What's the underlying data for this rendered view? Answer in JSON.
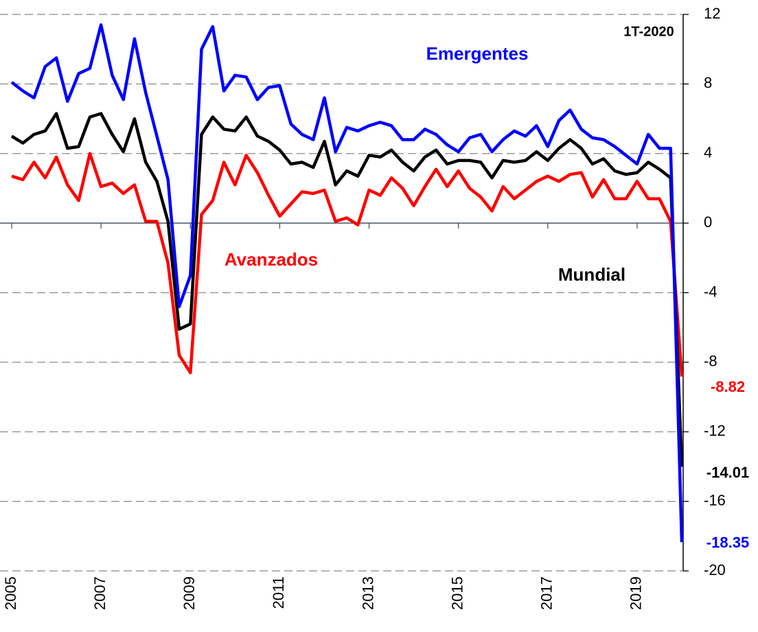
{
  "chart_data": {
    "type": "line",
    "annotations": [
      "1T-2020"
    ],
    "x": [
      2005,
      2005.25,
      2005.5,
      2005.75,
      2006,
      2006.25,
      2006.5,
      2006.75,
      2007,
      2007.25,
      2007.5,
      2007.75,
      2008,
      2008.25,
      2008.5,
      2008.75,
      2009,
      2009.25,
      2009.5,
      2009.75,
      2010,
      2010.25,
      2010.5,
      2010.75,
      2011,
      2011.25,
      2011.5,
      2011.75,
      2012,
      2012.25,
      2012.5,
      2012.75,
      2013,
      2013.25,
      2013.5,
      2013.75,
      2014,
      2014.25,
      2014.5,
      2014.75,
      2015,
      2015.25,
      2015.5,
      2015.75,
      2016,
      2016.25,
      2016.5,
      2016.75,
      2017,
      2017.25,
      2017.5,
      2017.75,
      2018,
      2018.25,
      2018.5,
      2018.75,
      2019,
      2019.25,
      2019.5,
      2019.75,
      2020
    ],
    "series": [
      {
        "name": "Avanzados",
        "color": "#ff0000",
        "values": [
          2.7,
          2.5,
          3.5,
          2.6,
          3.8,
          2.2,
          1.3,
          4.0,
          2.1,
          2.3,
          1.7,
          2.2,
          0.1,
          0.1,
          -2.3,
          -7.6,
          -8.6,
          0.5,
          1.3,
          3.5,
          2.2,
          3.9,
          2.9,
          1.6,
          0.4,
          1.1,
          1.8,
          1.7,
          1.9,
          0.1,
          0.3,
          -0.1,
          1.9,
          1.6,
          2.6,
          2.0,
          1.0,
          2.1,
          3.1,
          2.1,
          3.0,
          2.0,
          1.5,
          0.7,
          2.1,
          1.4,
          1.9,
          2.4,
          2.7,
          2.4,
          2.8,
          2.9,
          1.5,
          2.5,
          1.4,
          1.4,
          2.4,
          1.4,
          1.4,
          0.1,
          -8.82
        ]
      },
      {
        "name": "Mundial",
        "color": "#000000",
        "values": [
          5.0,
          4.6,
          5.1,
          5.3,
          6.3,
          4.3,
          4.4,
          6.1,
          6.3,
          5.1,
          4.1,
          6.0,
          3.5,
          2.4,
          0.1,
          -6.1,
          -5.8,
          5.1,
          6.1,
          5.4,
          5.3,
          6.1,
          5.0,
          4.7,
          4.2,
          3.4,
          3.5,
          3.2,
          4.7,
          2.2,
          3.0,
          2.7,
          3.9,
          3.8,
          4.2,
          3.5,
          3.0,
          3.8,
          4.2,
          3.4,
          3.6,
          3.6,
          3.5,
          2.6,
          3.6,
          3.5,
          3.6,
          4.1,
          3.6,
          4.3,
          4.8,
          4.3,
          3.4,
          3.7,
          3.0,
          2.8,
          2.9,
          3.5,
          3.1,
          2.6,
          -14.01
        ]
      },
      {
        "name": "Emergentes",
        "color": "#0000ff",
        "values": [
          8.1,
          7.6,
          7.2,
          9.0,
          9.5,
          7.0,
          8.6,
          8.9,
          11.4,
          8.5,
          7.1,
          10.6,
          7.5,
          5.0,
          2.5,
          -4.8,
          -3.0,
          10.0,
          11.3,
          7.6,
          8.5,
          8.4,
          7.1,
          7.8,
          7.9,
          5.7,
          5.1,
          4.8,
          7.2,
          4.1,
          5.5,
          5.3,
          5.6,
          5.8,
          5.6,
          4.8,
          4.8,
          5.4,
          5.1,
          4.5,
          4.1,
          4.9,
          5.1,
          4.1,
          4.8,
          5.3,
          5.0,
          5.6,
          4.4,
          5.9,
          6.5,
          5.4,
          4.9,
          4.8,
          4.4,
          3.9,
          3.4,
          5.1,
          4.3,
          4.3,
          -18.35
        ]
      }
    ],
    "xlim": [
      2005,
      2020
    ],
    "xticks": [
      2005,
      2007,
      2009,
      2011,
      2013,
      2015,
      2017,
      2019
    ],
    "ylim": [
      -20,
      12
    ],
    "yticks": [
      12,
      8,
      4,
      0,
      -4,
      -8,
      -12,
      -16,
      -20
    ],
    "grid": true
  }
}
